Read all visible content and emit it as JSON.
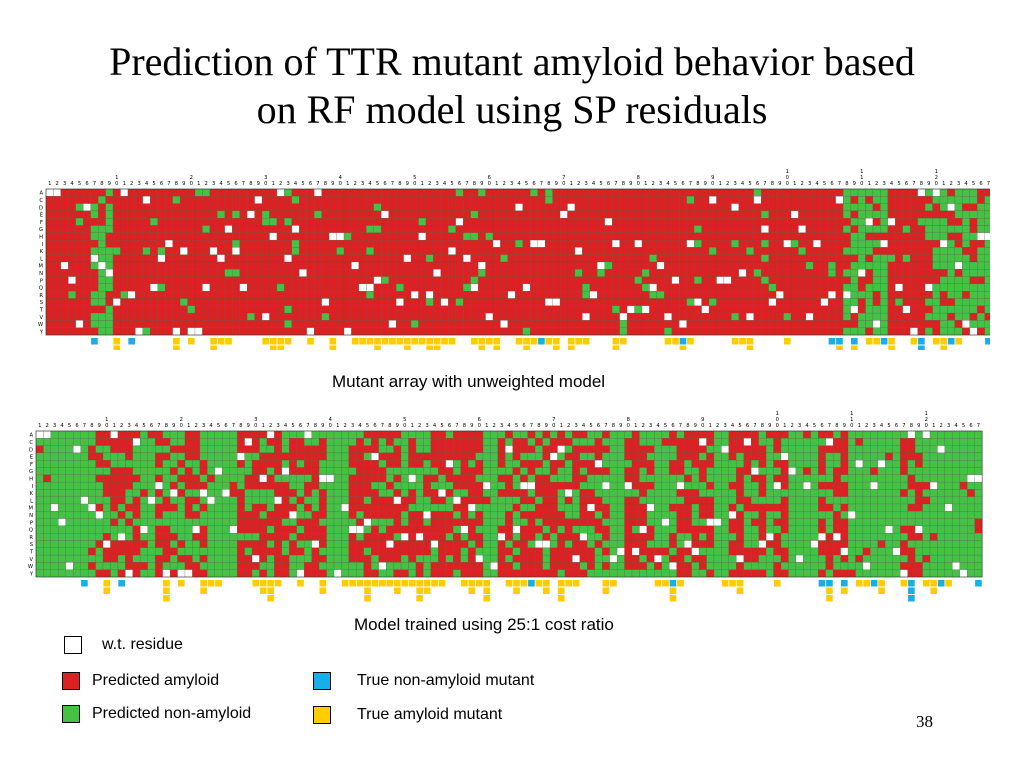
{
  "title_line1": "Prediction of TTR mutant amyloid behavior based",
  "title_line2": "on RF model using SP residuals",
  "panels": [
    {
      "caption": "Mutant array with unweighted model",
      "default_state": "amyloid"
    },
    {
      "caption": "Model trained using 25:1 cost ratio",
      "default_state": "non-amyloid"
    }
  ],
  "grid": {
    "positions": 127,
    "residues": [
      "A",
      "C",
      "D",
      "E",
      "F",
      "G",
      "H",
      "I",
      "K",
      "L",
      "M",
      "N",
      "P",
      "Q",
      "R",
      "S",
      "T",
      "V",
      "W",
      "Y"
    ]
  },
  "legend": {
    "wt_residue": "w.t. residue",
    "predicted_amyloid": "Predicted amyloid",
    "predicted_non_amyloid": "Predicted non-amyloid",
    "true_non_amyloid": "True non-amyloid mutant",
    "true_amyloid": "True amyloid mutant"
  },
  "colors": {
    "amyloid": "#dd2020",
    "non_amyloid": "#44c244",
    "wt": "#ffffff",
    "true_non_amyloid": "#18aee8",
    "true_amyloid": "#ffcc00",
    "gridline": "#555555"
  },
  "page_number": "38"
}
